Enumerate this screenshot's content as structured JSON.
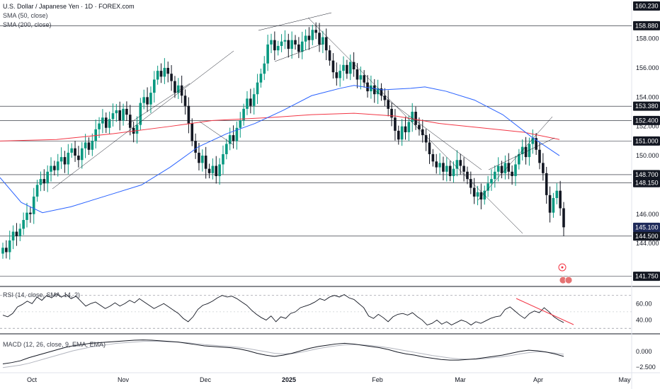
{
  "header": {
    "title": "U.S. Dollar / Japanese Yen · 1D · FOREX.com",
    "sma1": "SMA (50, close)",
    "sma2": "SMA (200, close)",
    "rsi_label": "RSI (14, close, SMA, 14, 2)",
    "macd_label": "MACD (12, 26, close, 9, EMA, EMA)"
  },
  "colors": {
    "up": "#089981",
    "down": "#131722",
    "sma50": "#2962ff",
    "sma200": "#f23645",
    "rsi": "#131722",
    "rsi_trend": "#f23645",
    "macd": "#131722",
    "signal": "#b2b5be",
    "label_bg": "#131722",
    "label_text": "#ffffff",
    "current_bg": "#1e2a5a"
  },
  "chart_data": {
    "type": "candlestick",
    "x_ticks": [
      "Oct",
      "Nov",
      "Dec",
      "2025",
      "Feb",
      "Mar",
      "Apr",
      "May"
    ],
    "y_ticks": [
      144.0,
      146.0,
      148.0,
      150.0,
      152.0,
      154.0,
      156.0,
      158.0
    ],
    "y_range": [
      141.2,
      160.4
    ],
    "levels": [
      {
        "value": 158.88,
        "label": "158.880"
      },
      {
        "value": 153.38,
        "label": "153.380"
      },
      {
        "value": 152.4,
        "label": "152.400"
      },
      {
        "value": 151.0,
        "label": "151.000"
      },
      {
        "value": 148.7,
        "label": "148.700"
      },
      {
        "value": 148.15,
        "label": "148.150"
      },
      {
        "value": 144.5,
        "label": "144.500"
      },
      {
        "value": 141.75,
        "label": "141.750"
      }
    ],
    "current_price": {
      "value": 145.1,
      "label": "145.100"
    },
    "top_price": {
      "value": 160.23,
      "label": "160.230"
    },
    "closes": [
      143.7,
      143.4,
      144.2,
      144.8,
      144.5,
      145.0,
      145.6,
      146.1,
      146.0,
      147.2,
      148.0,
      148.4,
      148.1,
      148.9,
      149.3,
      149.0,
      149.6,
      149.9,
      149.4,
      150.2,
      150.5,
      150.0,
      149.7,
      150.5,
      150.9,
      150.4,
      151.0,
      151.8,
      152.2,
      152.6,
      151.9,
      152.5,
      152.9,
      153.1,
      152.4,
      153.2,
      152.8,
      151.9,
      151.5,
      152.1,
      153.6,
      154.0,
      153.5,
      154.3,
      155.2,
      155.8,
      155.4,
      156.0,
      155.6,
      155.1,
      154.3,
      154.8,
      154.1,
      153.4,
      152.2,
      151.0,
      150.2,
      149.5,
      150.0,
      149.1,
      148.8,
      149.3,
      148.6,
      149.4,
      150.1,
      150.8,
      151.4,
      151.0,
      151.9,
      152.4,
      153.2,
      153.9,
      153.4,
      154.2,
      155.0,
      155.6,
      156.3,
      157.6,
      157.9,
      157.2,
      157.5,
      157.8,
      157.9,
      157.3,
      157.9,
      157.6,
      157.1,
      157.8,
      158.2,
      157.9,
      158.6,
      158.4,
      157.6,
      158.1,
      157.2,
      156.5,
      155.7,
      155.3,
      155.8,
      156.2,
      155.6,
      156.4,
      155.9,
      155.2,
      155.5,
      155.0,
      154.4,
      154.8,
      154.2,
      154.6,
      154.1,
      153.8,
      153.2,
      152.6,
      151.7,
      151.1,
      152.0,
      151.6,
      152.3,
      153.0,
      152.1,
      151.8,
      151.4,
      150.9,
      150.1,
      149.6,
      149.2,
      149.5,
      148.9,
      149.3,
      148.6,
      149.1,
      149.7,
      149.3,
      148.9,
      148.4,
      147.8,
      147.2,
      147.5,
      147.0,
      147.6,
      148.1,
      148.4,
      148.9,
      149.3,
      148.8,
      149.5,
      148.9,
      148.6,
      149.4,
      150.1,
      150.6,
      149.9,
      150.8,
      151.2,
      150.4,
      149.5,
      148.8,
      147.3,
      146.1,
      147.1,
      147.6,
      146.4,
      145.1
    ],
    "sma50": [
      [
        0,
        148.5
      ],
      [
        30,
        146.8
      ],
      [
        60,
        146.1
      ],
      [
        100,
        146.5
      ],
      [
        160,
        147.4
      ],
      [
        200,
        148.0
      ],
      [
        240,
        149.2
      ],
      [
        280,
        150.6
      ],
      [
        320,
        151.5
      ],
      [
        360,
        152.2
      ],
      [
        400,
        153.1
      ],
      [
        440,
        154.1
      ],
      [
        480,
        154.6
      ],
      [
        500,
        154.8
      ],
      [
        540,
        154.5
      ],
      [
        580,
        154.6
      ],
      [
        600,
        154.7
      ],
      [
        630,
        154.4
      ],
      [
        670,
        153.8
      ],
      [
        710,
        152.8
      ],
      [
        750,
        151.3
      ],
      [
        790,
        150.0
      ]
    ],
    "sma200": [
      [
        0,
        151.0
      ],
      [
        80,
        151.1
      ],
      [
        160,
        151.5
      ],
      [
        240,
        152.0
      ],
      [
        300,
        152.4
      ],
      [
        380,
        152.6
      ],
      [
        440,
        152.8
      ],
      [
        500,
        152.9
      ],
      [
        560,
        152.7
      ],
      [
        620,
        152.2
      ],
      [
        680,
        151.9
      ],
      [
        740,
        151.6
      ],
      [
        790,
        151.1
      ]
    ],
    "rsi_ticks": [
      60.0,
      40.0
    ],
    "rsi_range": [
      25,
      80
    ],
    "rsi": [
      46,
      44,
      48,
      56,
      59,
      63,
      60,
      68,
      64,
      70,
      67,
      72,
      68,
      71,
      66,
      69,
      63,
      57,
      60,
      62,
      58,
      54,
      57,
      61,
      57,
      60,
      64,
      61,
      66,
      62,
      58,
      54,
      57,
      60,
      56,
      52,
      48,
      42,
      38,
      44,
      53,
      58,
      60,
      63,
      67,
      70,
      68,
      69,
      66,
      62,
      58,
      52,
      47,
      43,
      40,
      45,
      38,
      44,
      42,
      48,
      50,
      55,
      57,
      59,
      62,
      66,
      64,
      68,
      70,
      68,
      71,
      67,
      65,
      60,
      55,
      45,
      42,
      47,
      43,
      38,
      44,
      47,
      48,
      46,
      49,
      44,
      40,
      34,
      36,
      40,
      35,
      38,
      34,
      37,
      40,
      38,
      34,
      38,
      36,
      39,
      42,
      44,
      45,
      53,
      56,
      51,
      46,
      42,
      48,
      51,
      49,
      55,
      50,
      44,
      40,
      37
    ],
    "rsi_trend": [
      [
        729,
        422
      ],
      [
        810,
        459
      ]
    ],
    "macd_ticks": [
      0.0,
      -2.5
    ],
    "macd_range": [
      -3.2,
      2.6
    ],
    "macd": [
      -2.0,
      -1.8,
      -1.5,
      -1.0,
      -0.6,
      -0.2,
      0.2,
      0.6,
      0.9,
      1.1,
      1.3,
      1.4,
      1.5,
      1.6,
      1.7,
      1.8,
      1.85,
      1.8,
      1.7,
      1.6,
      1.5,
      1.3,
      1.1,
      0.9,
      0.8,
      0.7,
      0.6,
      0.4,
      0.1,
      -0.3,
      -0.6,
      -0.8,
      -0.6,
      -0.3,
      0.1,
      0.5,
      0.8,
      1.0,
      1.2,
      1.3,
      1.2,
      1.0,
      0.8,
      0.6,
      0.3,
      -0.1,
      -0.4,
      -0.6,
      -0.9,
      -1.1,
      -1.3,
      -1.4,
      -1.4,
      -1.3,
      -1.2,
      -1.0,
      -0.8,
      -0.6,
      -0.3,
      0.0,
      0.2,
      0.1,
      -0.1,
      -0.4,
      -0.8
    ],
    "macd_signal": [
      -2.6,
      -2.4,
      -2.2,
      -1.9,
      -1.5,
      -1.1,
      -0.7,
      -0.3,
      0.1,
      0.4,
      0.7,
      0.9,
      1.1,
      1.3,
      1.4,
      1.5,
      1.6,
      1.65,
      1.6,
      1.55,
      1.5,
      1.4,
      1.25,
      1.1,
      1.0,
      0.9,
      0.8,
      0.65,
      0.45,
      0.2,
      -0.05,
      -0.3,
      -0.4,
      -0.35,
      -0.15,
      0.15,
      0.45,
      0.7,
      0.9,
      1.05,
      1.1,
      1.05,
      0.95,
      0.8,
      0.6,
      0.35,
      0.1,
      -0.15,
      -0.4,
      -0.65,
      -0.85,
      -1.05,
      -1.2,
      -1.25,
      -1.25,
      -1.15,
      -1.0,
      -0.85,
      -0.65,
      -0.4,
      -0.2,
      -0.05,
      -0.1,
      -0.25,
      -0.45
    ]
  }
}
